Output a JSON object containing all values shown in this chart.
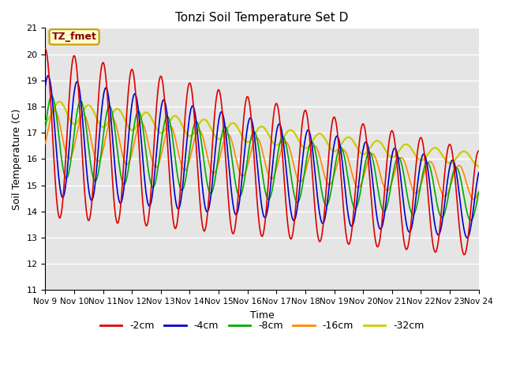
{
  "title": "Tonzi Soil Temperature Set D",
  "xlabel": "Time",
  "ylabel": "Soil Temperature (C)",
  "ylim": [
    11.0,
    21.0
  ],
  "yticks": [
    11.0,
    12.0,
    13.0,
    14.0,
    15.0,
    16.0,
    17.0,
    18.0,
    19.0,
    20.0,
    21.0
  ],
  "xtick_labels": [
    "Nov 9",
    "Nov 10",
    "Nov 11",
    "Nov 12",
    "Nov 13",
    "Nov 14",
    "Nov 15",
    "Nov 16",
    "Nov 17",
    "Nov 18",
    "Nov 19",
    "Nov 20",
    "Nov 21",
    "Nov 22",
    "Nov 23",
    "Nov 24"
  ],
  "annotation_text": "TZ_fmet",
  "annotation_bg": "#ffffcc",
  "annotation_border": "#cc9900",
  "annotation_text_color": "#880000",
  "cm2_color": "#dd0000",
  "cm4_color": "#0000cc",
  "cm8_color": "#00aa00",
  "cm16_color": "#ff8800",
  "cm32_color": "#cccc00",
  "cm2_label": "-2cm",
  "cm4_label": "-4cm",
  "cm8_label": "-8cm",
  "cm16_label": "-16cm",
  "cm32_label": "-32cm",
  "bg_color": "#e5e5e5",
  "grid_color": "#ffffff",
  "lw": 1.2,
  "cm32_lw": 1.6
}
